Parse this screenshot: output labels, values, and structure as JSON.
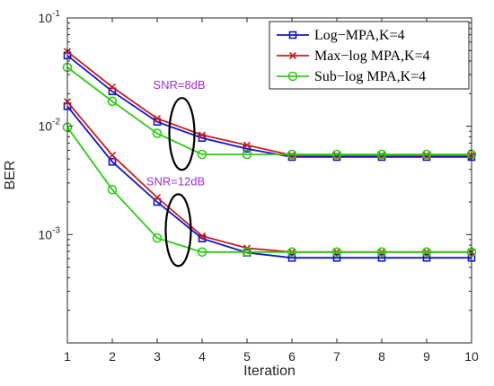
{
  "chart_data": {
    "type": "line",
    "xlabel": "Iteration",
    "ylabel": "BER",
    "x": [
      1,
      2,
      3,
      4,
      5,
      6,
      7,
      8,
      9,
      10
    ],
    "xlim": [
      1,
      10
    ],
    "ylim": [
      0.0001,
      0.1
    ],
    "yscale": "log",
    "x_ticks": [
      "1",
      "2",
      "3",
      "4",
      "5",
      "6",
      "7",
      "8",
      "9",
      "10"
    ],
    "y_ticks": [
      {
        "value": 0.001,
        "base": "10",
        "exp": "-3"
      },
      {
        "value": 0.01,
        "base": "10",
        "exp": "-2"
      },
      {
        "value": 0.1,
        "base": "10",
        "exp": "-1"
      }
    ],
    "grid": false,
    "legend_position": "top-right",
    "series": [
      {
        "name": "Log−MPA,K=4",
        "group": "SNR=8dB",
        "color": "#1414c8",
        "marker": "square",
        "values": [
          0.045,
          0.021,
          0.011,
          0.0078,
          0.0062,
          0.0052,
          0.0052,
          0.0052,
          0.0052,
          0.0052
        ]
      },
      {
        "name": "Max−log MPA,K=4",
        "group": "SNR=8dB",
        "color": "#c81e1e",
        "marker": "x",
        "values": [
          0.049,
          0.023,
          0.0118,
          0.0083,
          0.0067,
          0.0054,
          0.0054,
          0.0054,
          0.0054,
          0.0054
        ]
      },
      {
        "name": "Sub−log MPA,K=4",
        "group": "SNR=8dB",
        "color": "#2ecc14",
        "marker": "circle",
        "values": [
          0.035,
          0.017,
          0.0086,
          0.0055,
          0.0055,
          0.0055,
          0.0055,
          0.0055,
          0.0055,
          0.0055
        ]
      },
      {
        "name": "Log−MPA,K=4",
        "group": "SNR=12dB",
        "color": "#1414c8",
        "marker": "square",
        "values": [
          0.0153,
          0.0047,
          0.002,
          0.00092,
          0.00068,
          0.00061,
          0.00061,
          0.00061,
          0.00061,
          0.00061
        ]
      },
      {
        "name": "Max−log MPA,K=4",
        "group": "SNR=12dB",
        "color": "#c81e1e",
        "marker": "x",
        "values": [
          0.0168,
          0.0054,
          0.0022,
          0.00097,
          0.00075,
          0.00069,
          0.00069,
          0.00069,
          0.00069,
          0.00069
        ]
      },
      {
        "name": "Sub−log MPA,K=4",
        "group": "SNR=12dB",
        "color": "#2ecc14",
        "marker": "circle",
        "values": [
          0.0098,
          0.0026,
          0.00093,
          0.00069,
          0.00069,
          0.00069,
          0.00069,
          0.00069,
          0.00069,
          0.00069
        ]
      }
    ],
    "legend": [
      {
        "label": "Log−MPA,K=4",
        "color": "#1414c8",
        "marker": "square"
      },
      {
        "label": "Max−log MPA,K=4",
        "color": "#c81e1e",
        "marker": "x"
      },
      {
        "label": "Sub−log MPA,K=4",
        "color": "#2ecc14",
        "marker": "circle"
      }
    ],
    "annotations": [
      {
        "text": "SNR=8dB",
        "color": "#9b30d0",
        "ellipse_center": {
          "x": 3.55,
          "y": 0.0085
        }
      },
      {
        "text": "SNR=12dB",
        "color": "#9b30d0",
        "ellipse_center": {
          "x": 3.47,
          "y": 0.0011
        }
      }
    ]
  }
}
